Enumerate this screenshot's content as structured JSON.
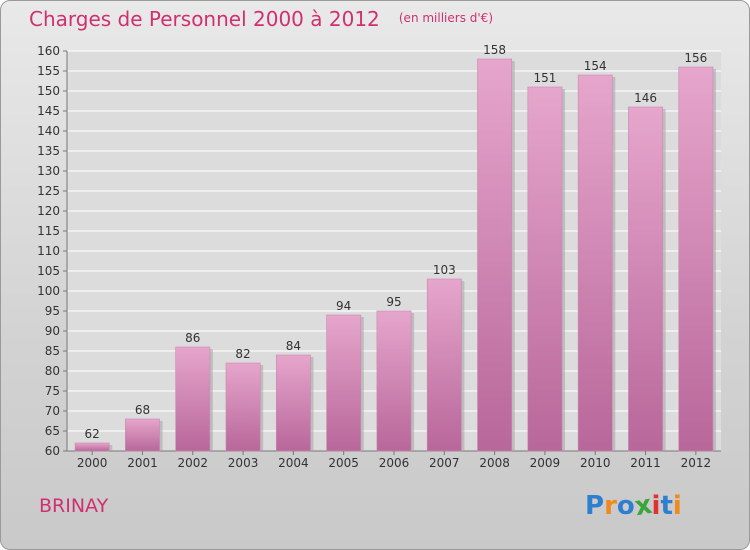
{
  "chart_data": {
    "type": "bar",
    "title": "Charges de Personnel 2000 à 2012",
    "subtitle": "(en milliers d'€)",
    "categories": [
      "2000",
      "2001",
      "2002",
      "2003",
      "2004",
      "2005",
      "2006",
      "2007",
      "2008",
      "2009",
      "2010",
      "2011",
      "2012"
    ],
    "values": [
      62,
      68,
      86,
      82,
      84,
      94,
      95,
      103,
      158,
      151,
      154,
      146,
      156
    ],
    "ylim": [
      60,
      160
    ],
    "yticks": [
      60,
      65,
      70,
      75,
      80,
      85,
      90,
      95,
      100,
      105,
      110,
      115,
      120,
      125,
      130,
      135,
      140,
      145,
      150,
      155,
      160
    ],
    "grid": true,
    "bar_color_top": "#e6a6cc",
    "bar_color_bottom": "#b8679a",
    "xlabel": "",
    "ylabel": ""
  },
  "place_name": "BRINAY",
  "logo": {
    "text": "Proxiti",
    "letters": [
      {
        "ch": "P",
        "color": "#2f7fd0"
      },
      {
        "ch": "r",
        "color": "#f08a1c"
      },
      {
        "ch": "o",
        "color": "#2f7fd0"
      },
      {
        "ch": "x",
        "color": "#3aa63a"
      },
      {
        "ch": "i",
        "color": "#e0322e"
      },
      {
        "ch": "t",
        "color": "#2f7fd0"
      },
      {
        "ch": "i",
        "color": "#f08a1c"
      }
    ]
  },
  "colors": {
    "accent": "#d03070",
    "grid": "#ffffff",
    "axis": "#777777"
  }
}
